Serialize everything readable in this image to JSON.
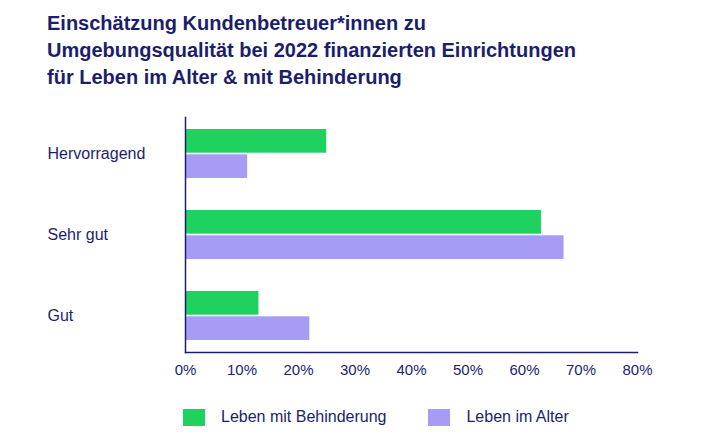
{
  "chart_data": {
    "type": "bar",
    "orientation": "horizontal",
    "title": "Einschätzung Kundenbetreuer*innen zu\nUmgebungsqualität bei 2022 finanzierten Einrichtungen\nfür Leben im Alter & mit Behinderung",
    "categories": [
      "Hervorragend",
      "Sehr gut",
      "Gut"
    ],
    "series": [
      {
        "name": "Leben mit Behinderung",
        "color": "#1fd25f",
        "values": [
          25,
          63,
          13
        ]
      },
      {
        "name": "Leben im Alter",
        "color": "#a69cf6",
        "values": [
          11,
          67,
          22
        ]
      }
    ],
    "xlim": [
      0,
      80
    ],
    "xticks": [
      {
        "value": 0,
        "label": "0%"
      },
      {
        "value": 10,
        "label": "10%"
      },
      {
        "value": 20,
        "label": "20%"
      },
      {
        "value": 30,
        "label": "30%"
      },
      {
        "value": 40,
        "label": "40%"
      },
      {
        "value": 50,
        "label": "50%"
      },
      {
        "value": 60,
        "label": "60%"
      },
      {
        "value": 70,
        "label": "70%"
      },
      {
        "value": 80,
        "label": "80%"
      }
    ],
    "grid": false,
    "legend": "bottom"
  }
}
